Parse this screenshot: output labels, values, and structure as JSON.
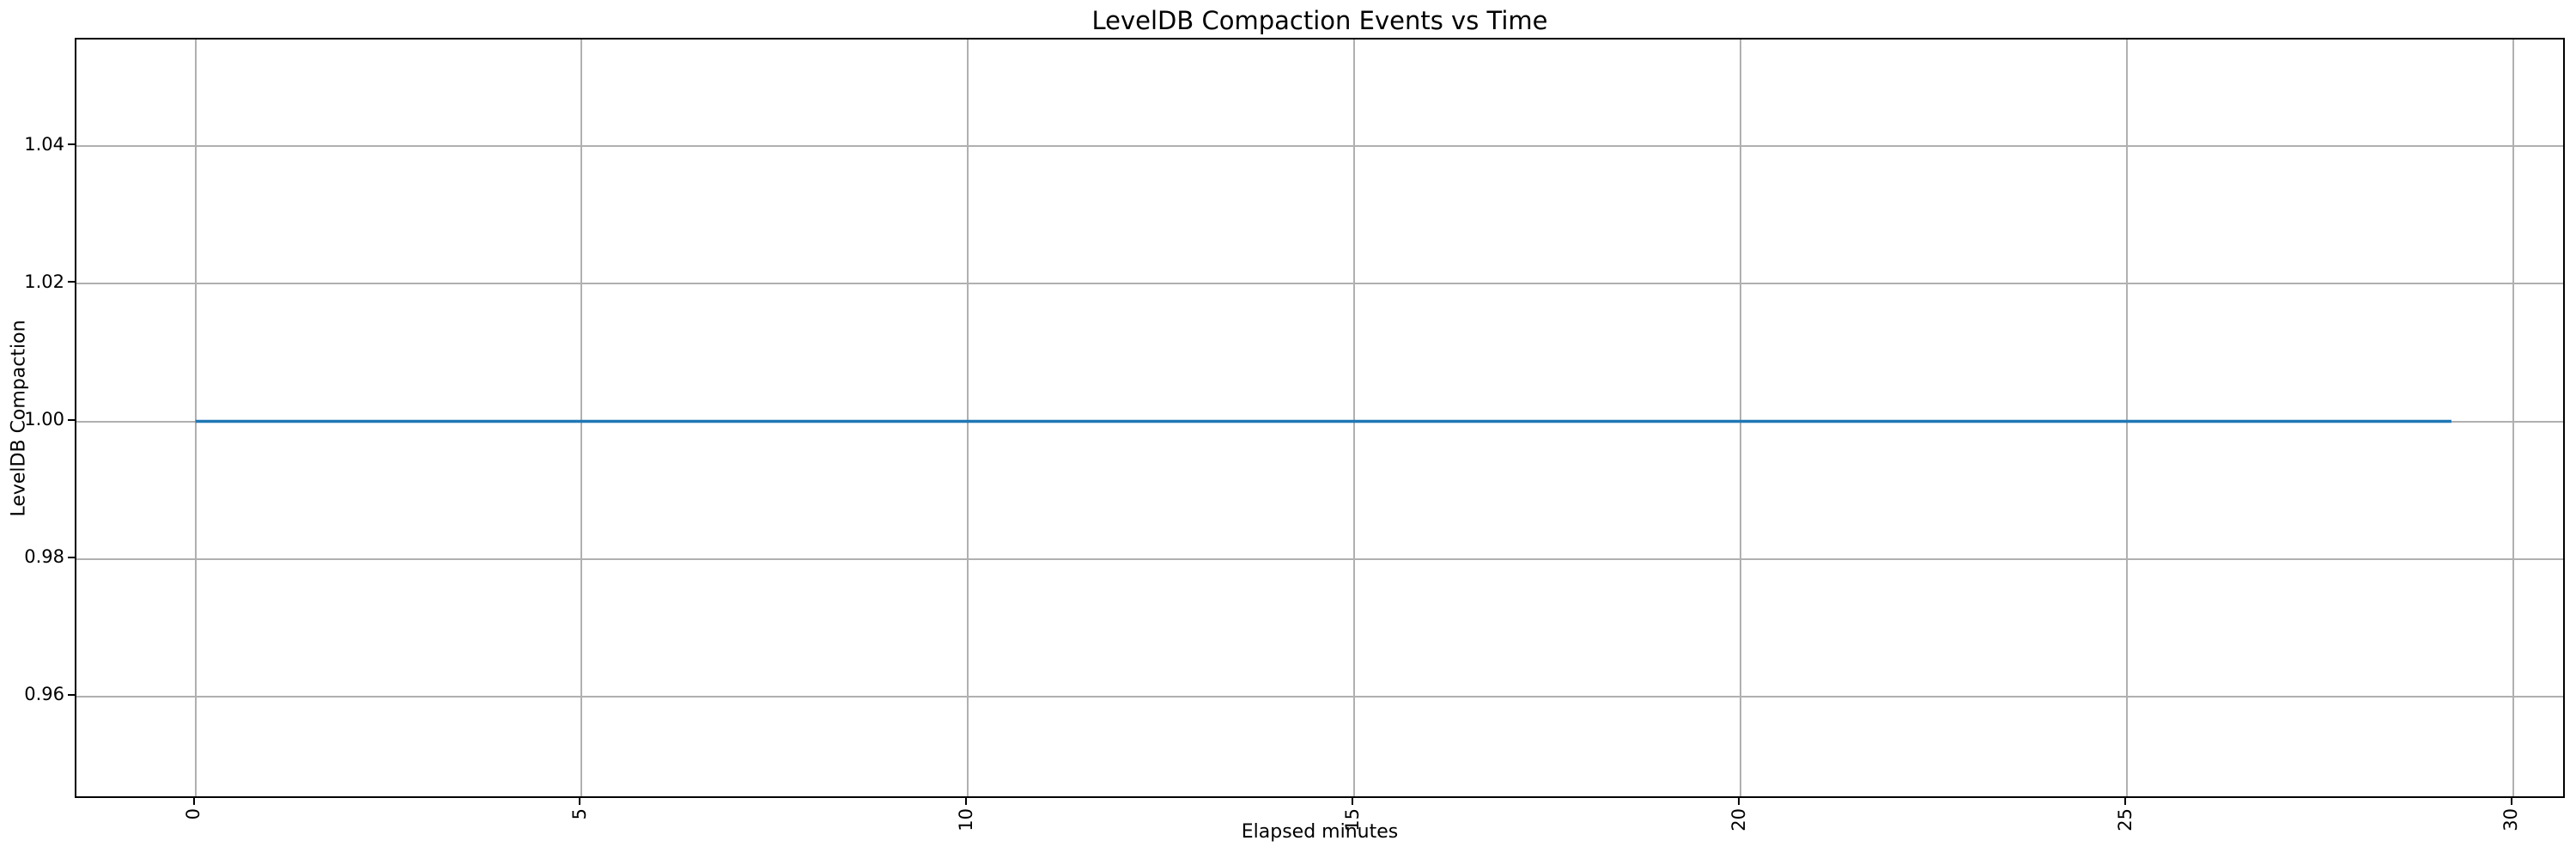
{
  "chart_data": {
    "type": "line",
    "title": "LevelDB Compaction Events vs Time",
    "xlabel": "Elapsed minutes",
    "ylabel": "LevelDB Compaction",
    "grid": true,
    "legend_position": "none",
    "xlim": [
      -1.54,
      30.69
    ],
    "ylim": [
      0.945,
      1.0555
    ],
    "xticks": [
      0,
      5,
      10,
      15,
      20,
      25,
      30
    ],
    "xtick_labels": [
      "0",
      "5",
      "10",
      "15",
      "20",
      "25",
      "30"
    ],
    "xtick_rotation": 90,
    "yticks": [
      0.96,
      0.98,
      1.0,
      1.02,
      1.04
    ],
    "ytick_labels": [
      "0.96",
      "0.98",
      "1.00",
      "1.02",
      "1.04"
    ],
    "series": [
      {
        "name": "LevelDB Compaction",
        "color": "#1f77b4",
        "x": [
          0,
          29.2
        ],
        "y": [
          1.0,
          1.0
        ]
      }
    ],
    "colors": {
      "grid": "#b0b0b0",
      "spine": "#000000",
      "text": "#000000",
      "background": "#ffffff"
    }
  }
}
